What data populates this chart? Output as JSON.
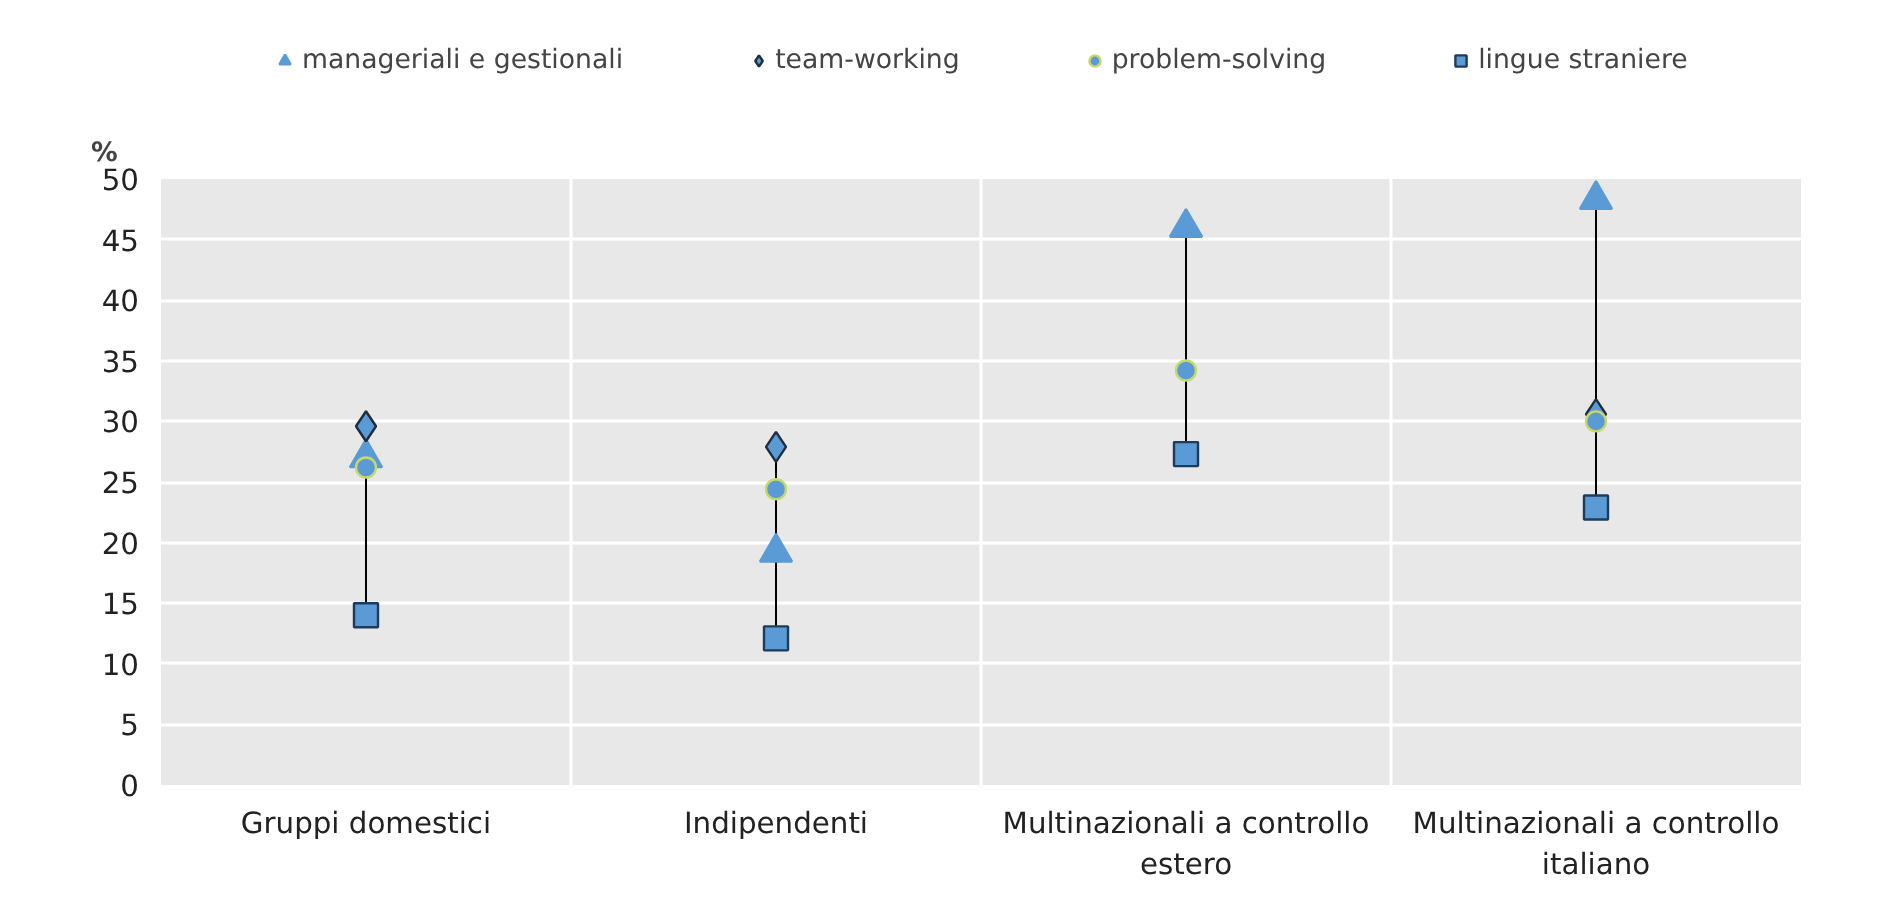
{
  "chart_data": {
    "type": "scatter",
    "ylabel": "%",
    "categories": [
      "Gruppi domestici",
      "Indipendenti",
      "Multinazionali a controllo\nestero",
      "Multinazionali a controllo\nitaliano"
    ],
    "series": [
      {
        "name": "manageriali e gestionali",
        "color": "#5b9bd5",
        "marker": "triangle",
        "values": [
          27,
          19.2,
          46,
          48.3
        ]
      },
      {
        "name": "team-working",
        "color": "#5b9bd5",
        "marker": "diamond",
        "values": [
          29.6,
          27.9,
          null,
          30.6
        ]
      },
      {
        "name": "problem-solving",
        "color": "#5b9bd5",
        "marker": "circle",
        "values": [
          26.2,
          24.4,
          34.2,
          30
        ]
      },
      {
        "name": "lingue straniere",
        "color": "#5b9bd5",
        "marker": "square",
        "values": [
          14,
          12.1,
          27.3,
          22.9
        ]
      }
    ],
    "ylim": [
      0,
      50
    ],
    "yticks": [
      0,
      5,
      10,
      15,
      20,
      25,
      30,
      35,
      40,
      45,
      50
    ],
    "grid": true,
    "legend": "top"
  }
}
